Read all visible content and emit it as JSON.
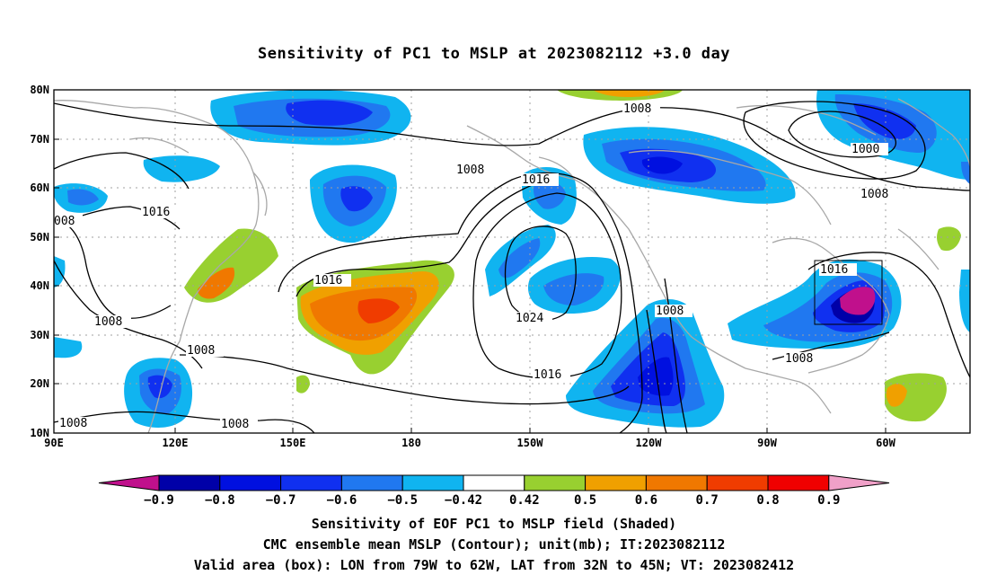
{
  "title": "Sensitivity of PC1 to MSLP at 2023082112 +3.0 day",
  "map": {
    "lat_labels": [
      "80N",
      "70N",
      "60N",
      "50N",
      "40N",
      "30N",
      "20N",
      "10N"
    ],
    "lon_labels": [
      "90E",
      "120E",
      "150E",
      "180",
      "150W",
      "120W",
      "90W",
      "60W"
    ],
    "contour_labels": [
      {
        "text": "1008",
        "name": "contour-label-1008-a"
      },
      {
        "text": "1000",
        "name": "contour-label-1000"
      },
      {
        "text": "1008",
        "name": "contour-label-1008-b"
      },
      {
        "text": "1008",
        "name": "contour-label-1008-c"
      },
      {
        "text": "1016",
        "name": "contour-label-1016-a"
      },
      {
        "text": "1016",
        "name": "contour-label-1016-b"
      },
      {
        "text": "008",
        "name": "contour-label-008"
      },
      {
        "text": "1016",
        "name": "contour-label-1016-c"
      },
      {
        "text": "1016",
        "name": "contour-label-1016-d"
      },
      {
        "text": "1024",
        "name": "contour-label-1024"
      },
      {
        "text": "1008",
        "name": "contour-label-1008-d"
      },
      {
        "text": "1008",
        "name": "contour-label-1008-e"
      },
      {
        "text": "1008",
        "name": "contour-label-1008-f"
      },
      {
        "text": "1016",
        "name": "contour-label-1016-e"
      },
      {
        "text": "1008",
        "name": "contour-label-1008-g"
      },
      {
        "text": "1008",
        "name": "contour-label-1008-h"
      },
      {
        "text": "1008",
        "name": "contour-label-1008-i"
      }
    ]
  },
  "colorbar": {
    "labels": [
      "-0.9",
      "-0.8",
      "-0.7",
      "-0.6",
      "-0.5",
      "-0.42",
      "0.42",
      "0.5",
      "0.6",
      "0.7",
      "0.8",
      "0.9"
    ],
    "colors": [
      "#c0108c",
      "#0000a8",
      "#0010e0",
      "#1030f0",
      "#2078f0",
      "#10b4f0",
      "#ffffff",
      "#98d030",
      "#f0a000",
      "#f07800",
      "#f03c00",
      "#f00000",
      "#f0a0c8"
    ]
  },
  "footer": {
    "line1": "Sensitivity of EOF PC1 to MSLP field (Shaded)",
    "line2": "CMC ensemble mean MSLP (Contour); unit(mb); IT:2023082112",
    "line3": "Valid area (box): LON from 79W to 62W, LAT from 32N to 45N; VT: 2023082412"
  }
}
